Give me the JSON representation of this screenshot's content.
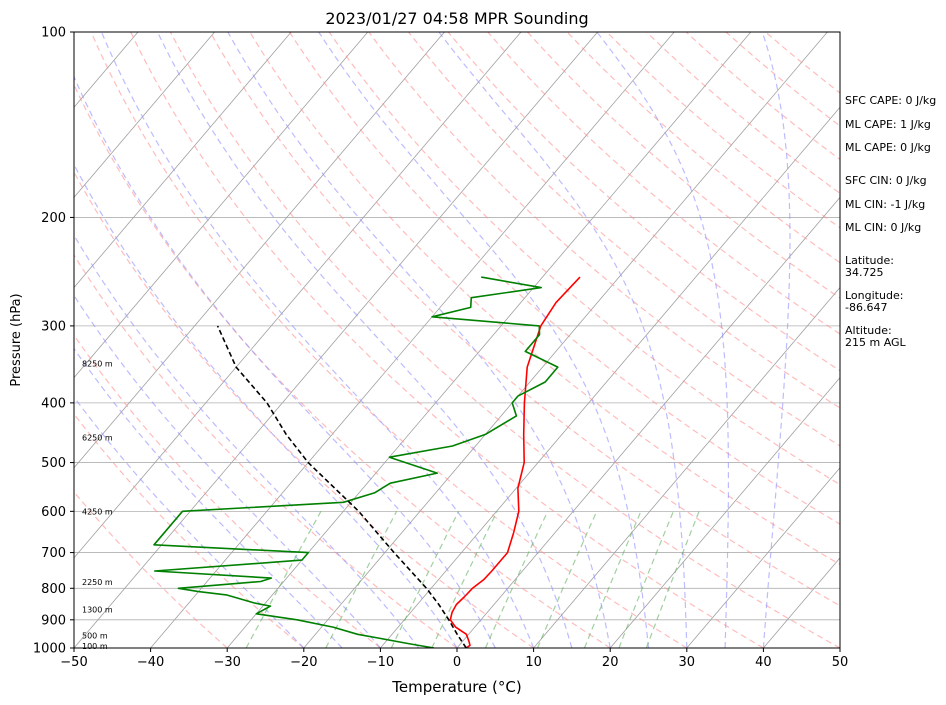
{
  "chart_data": {
    "type": "line",
    "title": "2023/01/27 04:58 MPR Sounding",
    "xlabel": "Temperature (°C)",
    "ylabel": "Pressure (hPa)",
    "xlim": [
      -50,
      50
    ],
    "ylim": [
      1000,
      100
    ],
    "yscale": "log",
    "grid": true,
    "x_ticks": [
      -50,
      -40,
      -30,
      -20,
      -10,
      0,
      10,
      20,
      30,
      40,
      50
    ],
    "y_ticks": [
      100,
      200,
      300,
      400,
      500,
      600,
      700,
      800,
      900,
      1000
    ],
    "series": [
      {
        "color": "#ff0000",
        "points": [
          {
            "p": 1000,
            "t": 1.2
          },
          {
            "p": 990,
            "t": 1.4
          },
          {
            "p": 975,
            "t": 0.8
          },
          {
            "p": 950,
            "t": -0.3
          },
          {
            "p": 925,
            "t": -2.5
          },
          {
            "p": 900,
            "t": -4.0
          },
          {
            "p": 875,
            "t": -4.6
          },
          {
            "p": 850,
            "t": -4.9
          },
          {
            "p": 825,
            "t": -4.7
          },
          {
            "p": 800,
            "t": -4.6
          },
          {
            "p": 775,
            "t": -4.1
          },
          {
            "p": 750,
            "t": -4.0
          },
          {
            "p": 700,
            "t": -4.0
          },
          {
            "p": 650,
            "t": -5.4
          },
          {
            "p": 600,
            "t": -7.1
          },
          {
            "p": 550,
            "t": -9.8
          },
          {
            "p": 500,
            "t": -11.8
          },
          {
            "p": 450,
            "t": -15.0
          },
          {
            "p": 400,
            "t": -18.4
          },
          {
            "p": 350,
            "t": -22.0
          },
          {
            "p": 300,
            "t": -24.8
          },
          {
            "p": 275,
            "t": -25.4
          },
          {
            "p": 250,
            "t": -25.1
          }
        ]
      },
      {
        "color": "#008000",
        "points": [
          {
            "p": 1000,
            "t": -3.0
          },
          {
            "p": 985,
            "t": -6.5
          },
          {
            "p": 965,
            "t": -11.0
          },
          {
            "p": 950,
            "t": -14.5
          },
          {
            "p": 925,
            "t": -18.5
          },
          {
            "p": 900,
            "t": -24.0
          },
          {
            "p": 880,
            "t": -30.0
          },
          {
            "p": 855,
            "t": -29.0
          },
          {
            "p": 845,
            "t": -31.5
          },
          {
            "p": 820,
            "t": -36.0
          },
          {
            "p": 810,
            "t": -40.0
          },
          {
            "p": 800,
            "t": -43.0
          },
          {
            "p": 780,
            "t": -33.0
          },
          {
            "p": 770,
            "t": -32.0
          },
          {
            "p": 750,
            "t": -48.0
          },
          {
            "p": 720,
            "t": -30.0
          },
          {
            "p": 700,
            "t": -30.0
          },
          {
            "p": 680,
            "t": -51.0
          },
          {
            "p": 600,
            "t": -51.0
          },
          {
            "p": 580,
            "t": -31.0
          },
          {
            "p": 560,
            "t": -28.0
          },
          {
            "p": 540,
            "t": -27.0
          },
          {
            "p": 520,
            "t": -22.0
          },
          {
            "p": 490,
            "t": -30.0
          },
          {
            "p": 470,
            "t": -23.0
          },
          {
            "p": 450,
            "t": -20.0
          },
          {
            "p": 420,
            "t": -18.0
          },
          {
            "p": 400,
            "t": -20.0
          },
          {
            "p": 390,
            "t": -20.0
          },
          {
            "p": 370,
            "t": -18.0
          },
          {
            "p": 350,
            "t": -18.0
          },
          {
            "p": 330,
            "t": -24.0
          },
          {
            "p": 310,
            "t": -24.0
          },
          {
            "p": 300,
            "t": -25.0
          },
          {
            "p": 290,
            "t": -40.0
          },
          {
            "p": 280,
            "t": -36.0
          },
          {
            "p": 270,
            "t": -37.0
          },
          {
            "p": 260,
            "t": -29.0
          },
          {
            "p": 250,
            "t": -38.0
          }
        ]
      },
      {
        "color": "#000000",
        "dashed": true,
        "points": [
          {
            "p": 1000,
            "t": 1.2
          },
          {
            "p": 950,
            "t": -1.5
          },
          {
            "p": 900,
            "t": -4.2
          },
          {
            "p": 850,
            "t": -7.2
          },
          {
            "p": 800,
            "t": -10.6
          },
          {
            "p": 700,
            "t": -18.8
          },
          {
            "p": 600,
            "t": -28.0
          },
          {
            "p": 500,
            "t": -40.0
          },
          {
            "p": 450,
            "t": -46.0
          },
          {
            "p": 400,
            "t": -52.0
          },
          {
            "p": 350,
            "t": -60.0
          },
          {
            "p": 300,
            "t": -67.0
          }
        ]
      }
    ],
    "height_labels": [
      {
        "p": 993,
        "text": "100 m"
      },
      {
        "p": 955,
        "text": "500 m"
      },
      {
        "p": 866,
        "text": "1300 m"
      },
      {
        "p": 781,
        "text": "2250 m"
      },
      {
        "p": 600,
        "text": "4250 m"
      },
      {
        "p": 455,
        "text": "6250 m"
      },
      {
        "p": 345,
        "text": "8250 m"
      }
    ],
    "info": {
      "sfc_cape": "SFC CAPE: 0 J/kg",
      "ml_cape_1": "ML CAPE: 1 J/kg",
      "ml_cape_2": "ML CAPE: 0 J/kg",
      "sfc_cin": "SFC CIN: 0 J/kg",
      "ml_cin_1": "ML CIN: -1 J/kg",
      "ml_cin_2": "ML CIN: 0 J/kg",
      "latitude_label": "Latitude:",
      "latitude_value": "34.725",
      "longitude_label": "Longitude:",
      "longitude_value": "-86.647",
      "altitude_label": "Altitude:",
      "altitude_value": "215 m AGL"
    }
  }
}
